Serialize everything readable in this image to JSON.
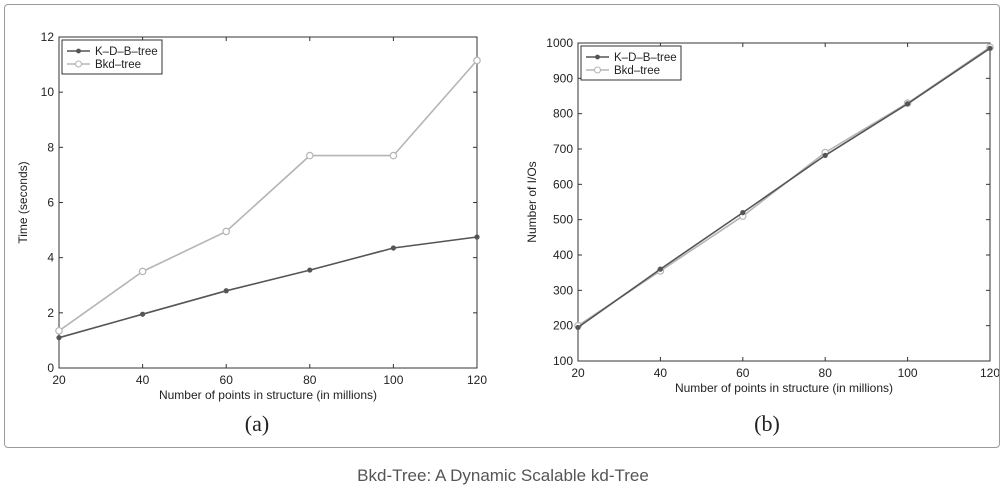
{
  "caption": "Bkd-Tree: A Dynamic Scalable kd-Tree",
  "chart_data": [
    {
      "type": "line",
      "panel_label": "(a)",
      "xlabel": "Number of points in structure (in millions)",
      "ylabel": "Time (seconds)",
      "x": [
        20,
        40,
        60,
        80,
        100,
        120
      ],
      "xlim": [
        20,
        120
      ],
      "ylim": [
        0,
        12
      ],
      "xticks": [
        20,
        40,
        60,
        80,
        100,
        120
      ],
      "yticks": [
        0,
        2,
        4,
        6,
        8,
        10,
        12
      ],
      "grid": false,
      "legend": "top-left",
      "series": [
        {
          "name": "K–D–B–tree",
          "marker": "dot",
          "color": "#555555",
          "values": [
            1.1,
            1.95,
            2.8,
            3.55,
            4.35,
            4.75
          ]
        },
        {
          "name": "Bkd–tree",
          "marker": "circle",
          "color": "#b5b5b5",
          "values": [
            1.35,
            3.5,
            4.95,
            7.7,
            7.7,
            11.15
          ]
        }
      ]
    },
    {
      "type": "line",
      "panel_label": "(b)",
      "xlabel": "Number of points in structure (in millions)",
      "ylabel": "Number of I/Os",
      "x": [
        20,
        40,
        60,
        80,
        100,
        120
      ],
      "xlim": [
        20,
        120
      ],
      "ylim": [
        100,
        1000
      ],
      "xticks": [
        20,
        40,
        60,
        80,
        100,
        120
      ],
      "yticks": [
        100,
        200,
        300,
        400,
        500,
        600,
        700,
        800,
        900,
        1000
      ],
      "grid": false,
      "legend": "top-left",
      "series": [
        {
          "name": "K–D–B–tree",
          "marker": "dot",
          "color": "#555555",
          "values": [
            195,
            360,
            520,
            682,
            828,
            985
          ]
        },
        {
          "name": "Bkd–tree",
          "marker": "circle",
          "color": "#b5b5b5",
          "values": [
            200,
            355,
            510,
            690,
            830,
            988
          ]
        }
      ]
    }
  ]
}
